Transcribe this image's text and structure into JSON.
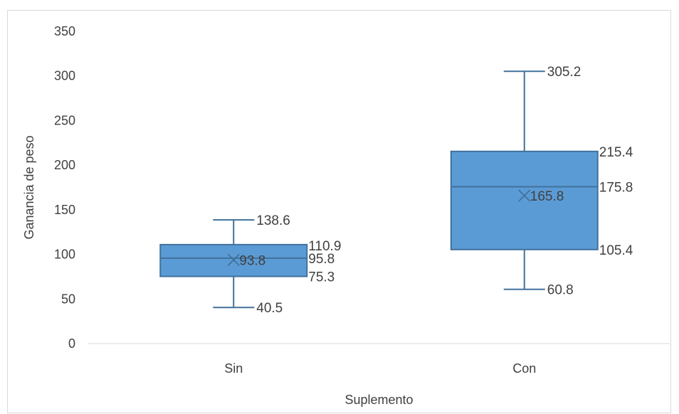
{
  "chart_data": {
    "type": "boxplot",
    "xlabel": "Suplemento",
    "ylabel": "Ganancia de peso",
    "ylim": [
      0,
      350
    ],
    "yticks": [
      0,
      50,
      100,
      150,
      200,
      250,
      300,
      350
    ],
    "categories": [
      "Sin",
      "Con"
    ],
    "grid": false,
    "legend": "none",
    "box_color": "#5b9bd5",
    "line_color": "#41719c",
    "boxes": [
      {
        "category": "Sin",
        "min": 40.5,
        "q1": 75.3,
        "median": 95.8,
        "q3": 110.9,
        "max": 138.6,
        "mean": 93.8,
        "labels": {
          "min": "40.5",
          "q1": "75.3",
          "median": "95.8",
          "q3": "110.9",
          "max": "138.6",
          "mean": "93.8"
        }
      },
      {
        "category": "Con",
        "min": 60.8,
        "q1": 105.4,
        "median": 175.8,
        "q3": 215.4,
        "max": 305.2,
        "mean": 165.8,
        "labels": {
          "min": "60.8",
          "q1": "105.4",
          "median": "175.8",
          "q3": "215.4",
          "max": "305.2",
          "mean": "165.8"
        }
      }
    ]
  }
}
